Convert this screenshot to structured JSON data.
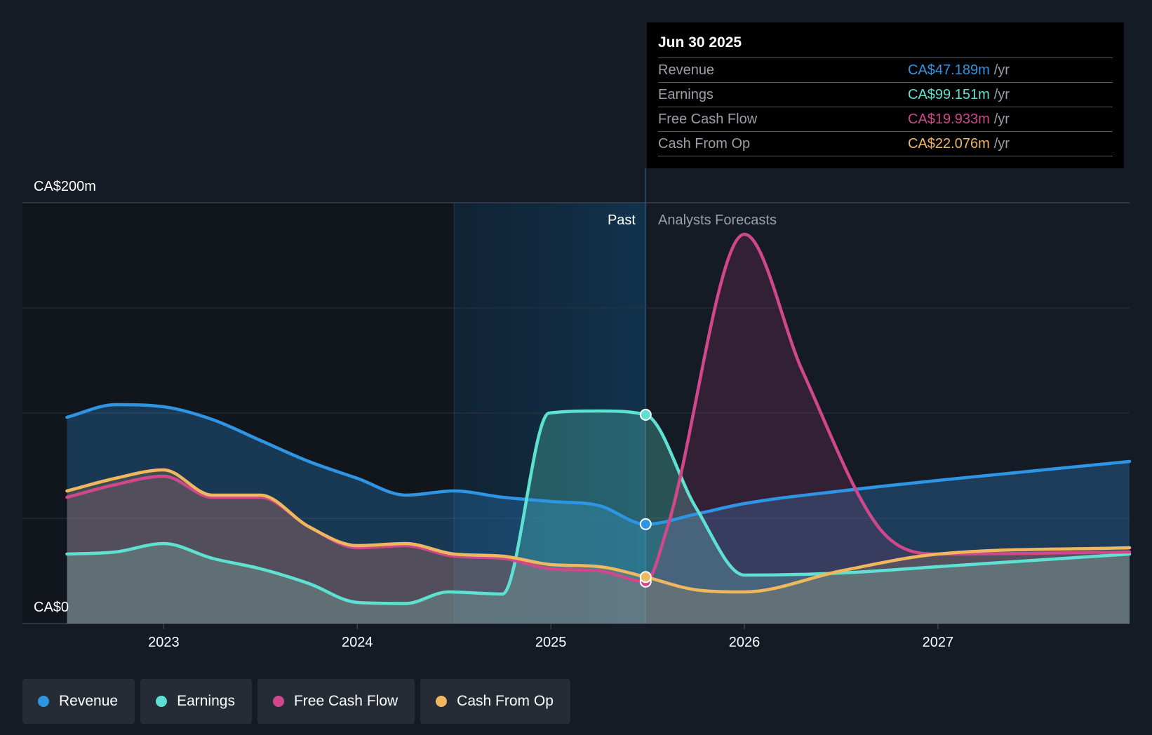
{
  "chart_data": {
    "type": "area",
    "y_axis": {
      "max_label": "CA$200m",
      "min_label": "CA$0",
      "ylim": [
        0,
        200
      ],
      "unit": "CA$m"
    },
    "x_axis": {
      "ticks": [
        "2023",
        "2024",
        "2025",
        "2026",
        "2027"
      ],
      "xlim": [
        2022.27,
        2027.99
      ]
    },
    "regions": {
      "past_label": "Past",
      "forecast_label": "Analysts Forecasts",
      "divider_x": 2025.49,
      "highlight_start_x": 2024.5
    },
    "series": [
      {
        "name": "Revenue",
        "key": "revenue",
        "color": "#2d95e3",
        "points": [
          [
            2022.5,
            98
          ],
          [
            2022.75,
            104
          ],
          [
            2023.0,
            103
          ],
          [
            2023.25,
            97
          ],
          [
            2023.5,
            87
          ],
          [
            2023.75,
            77
          ],
          [
            2024.0,
            69
          ],
          [
            2024.25,
            61
          ],
          [
            2024.5,
            63
          ],
          [
            2024.75,
            60
          ],
          [
            2025.0,
            58
          ],
          [
            2025.25,
            56
          ],
          [
            2025.49,
            47.2
          ],
          [
            2025.75,
            52
          ],
          [
            2026.0,
            57
          ],
          [
            2026.5,
            63
          ],
          [
            2027.0,
            68
          ],
          [
            2027.99,
            77
          ]
        ]
      },
      {
        "name": "Earnings",
        "key": "earnings",
        "color": "#5ee1d2",
        "points": [
          [
            2022.5,
            33
          ],
          [
            2022.75,
            34
          ],
          [
            2023.0,
            38
          ],
          [
            2023.25,
            31
          ],
          [
            2023.5,
            26
          ],
          [
            2023.75,
            19
          ],
          [
            2024.0,
            10
          ],
          [
            2024.25,
            9.5
          ],
          [
            2024.47,
            15
          ],
          [
            2024.75,
            14
          ],
          [
            2024.99,
            100
          ],
          [
            2025.25,
            101
          ],
          [
            2025.49,
            99.2
          ],
          [
            2025.75,
            55
          ],
          [
            2026.0,
            23
          ],
          [
            2026.5,
            24
          ],
          [
            2027.0,
            27
          ],
          [
            2027.99,
            33
          ]
        ]
      },
      {
        "name": "Free Cash Flow",
        "key": "fcf",
        "color": "#d0478b",
        "points": [
          [
            2022.5,
            60
          ],
          [
            2022.75,
            66
          ],
          [
            2023.0,
            70
          ],
          [
            2023.25,
            60
          ],
          [
            2023.5,
            60
          ],
          [
            2023.75,
            46
          ],
          [
            2024.0,
            36
          ],
          [
            2024.25,
            37
          ],
          [
            2024.5,
            32
          ],
          [
            2024.75,
            31
          ],
          [
            2025.0,
            26
          ],
          [
            2025.25,
            25
          ],
          [
            2025.49,
            19.9
          ],
          [
            2025.6,
            45
          ],
          [
            2026.0,
            185
          ],
          [
            2026.3,
            120
          ],
          [
            2026.7,
            45
          ],
          [
            2027.0,
            33
          ],
          [
            2027.99,
            34
          ]
        ]
      },
      {
        "name": "Cash From Op",
        "key": "cfo",
        "color": "#f0b85e",
        "points": [
          [
            2022.5,
            63
          ],
          [
            2022.75,
            69
          ],
          [
            2023.0,
            73
          ],
          [
            2023.25,
            61
          ],
          [
            2023.5,
            61
          ],
          [
            2023.75,
            46
          ],
          [
            2024.0,
            37
          ],
          [
            2024.25,
            38
          ],
          [
            2024.5,
            33
          ],
          [
            2024.75,
            32
          ],
          [
            2025.0,
            28
          ],
          [
            2025.25,
            27
          ],
          [
            2025.49,
            22.1
          ],
          [
            2025.75,
            16
          ],
          [
            2026.0,
            15
          ],
          [
            2026.5,
            25
          ],
          [
            2027.0,
            33
          ],
          [
            2027.99,
            36
          ]
        ]
      }
    ]
  },
  "tooltip": {
    "date": "Jun 30 2025",
    "rows": [
      {
        "label": "Revenue",
        "value": "CA$47.189m",
        "unit": "/yr",
        "color": "#2d95e3"
      },
      {
        "label": "Earnings",
        "value": "CA$99.151m",
        "unit": "/yr",
        "color": "#5ee1d2"
      },
      {
        "label": "Free Cash Flow",
        "value": "CA$19.933m",
        "unit": "/yr",
        "color": "#d0478b"
      },
      {
        "label": "Cash From Op",
        "value": "CA$22.076m",
        "unit": "/yr",
        "color": "#f0b85e"
      }
    ]
  },
  "legend": [
    {
      "label": "Revenue",
      "color": "#2d95e3"
    },
    {
      "label": "Earnings",
      "color": "#5ee1d2"
    },
    {
      "label": "Free Cash Flow",
      "color": "#d0478b"
    },
    {
      "label": "Cash From Op",
      "color": "#f0b85e"
    }
  ]
}
